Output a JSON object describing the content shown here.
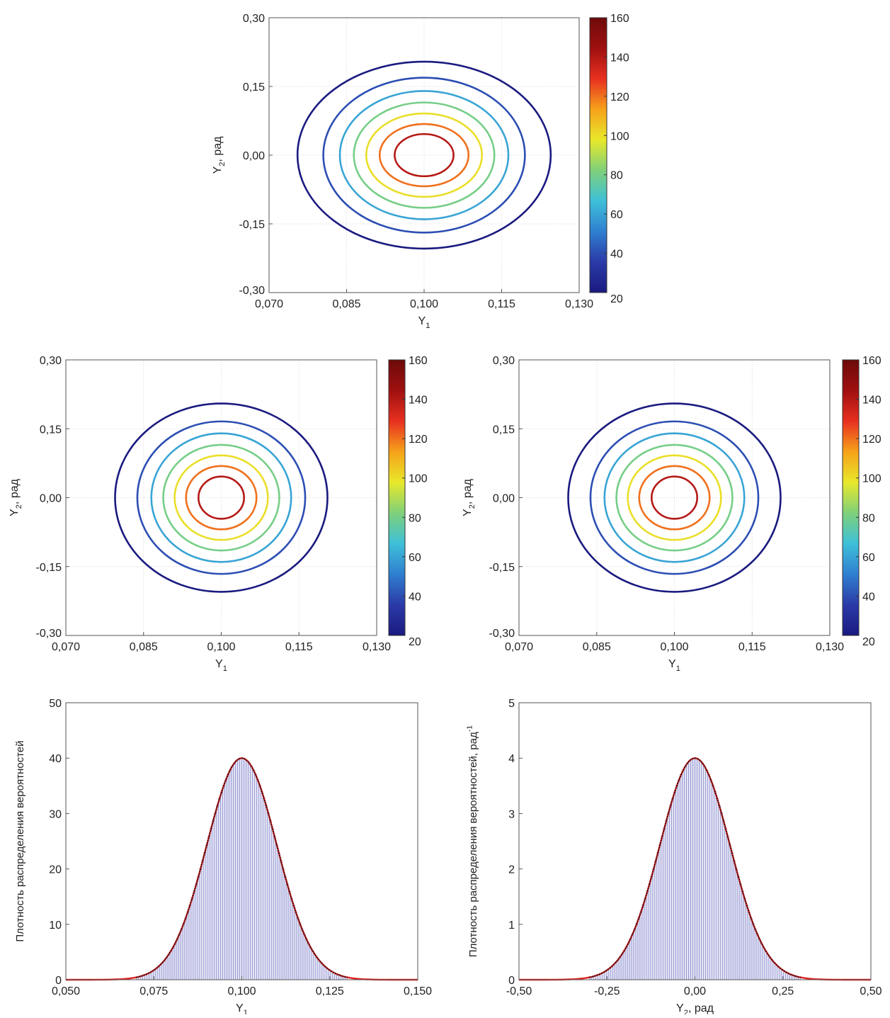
{
  "chart_data": [
    {
      "type": "contour",
      "xlabel": "Y1",
      "ylabel": "Y2, рад",
      "xlim": [
        0.07,
        0.13
      ],
      "ylim": [
        -0.3,
        0.3
      ],
      "xticks": [
        "0,070",
        "0,085",
        "0,100",
        "0,115",
        "0,130"
      ],
      "yticks": [
        "-0,30",
        "-0,15",
        "0,00",
        "0,15",
        "0,30"
      ],
      "grid": true,
      "center": [
        0.1,
        0.0
      ],
      "levels": [
        20,
        40,
        60,
        80,
        100,
        120,
        140
      ],
      "level_radii": [
        {
          "level": 20,
          "rx": 0.0245,
          "ry": 0.204
        },
        {
          "level": 40,
          "rx": 0.0195,
          "ry": 0.169
        },
        {
          "level": 60,
          "rx": 0.0163,
          "ry": 0.14
        },
        {
          "level": 80,
          "rx": 0.0136,
          "ry": 0.115
        },
        {
          "level": 100,
          "rx": 0.0112,
          "ry": 0.091
        },
        {
          "level": 120,
          "rx": 0.0086,
          "ry": 0.068
        },
        {
          "level": 140,
          "rx": 0.0057,
          "ry": 0.046
        }
      ],
      "colorbar": {
        "min": 20,
        "max": 160,
        "ticks": [
          "20",
          "40",
          "60",
          "80",
          "100",
          "120",
          "140",
          "160"
        ]
      }
    },
    {
      "type": "contour",
      "xlabel": "Y1",
      "ylabel": "Y2, рад",
      "xlim": [
        0.07,
        0.13
      ],
      "ylim": [
        -0.3,
        0.3
      ],
      "xticks": [
        "0,070",
        "0,085",
        "0,100",
        "0,115",
        "0,130"
      ],
      "yticks": [
        "-0,30",
        "-0,15",
        "0,00",
        "0,15",
        "0,30"
      ],
      "grid": true,
      "center": [
        0.1,
        0.0
      ],
      "levels": [
        20,
        40,
        60,
        80,
        100,
        120,
        140
      ],
      "level_radii": [
        {
          "level": 20,
          "rx": 0.0205,
          "ry": 0.205
        },
        {
          "level": 40,
          "rx": 0.0162,
          "ry": 0.166
        },
        {
          "level": 60,
          "rx": 0.0135,
          "ry": 0.14
        },
        {
          "level": 80,
          "rx": 0.0112,
          "ry": 0.115
        },
        {
          "level": 100,
          "rx": 0.009,
          "ry": 0.092
        },
        {
          "level": 120,
          "rx": 0.0068,
          "ry": 0.069
        },
        {
          "level": 140,
          "rx": 0.0044,
          "ry": 0.046
        }
      ],
      "colorbar": {
        "min": 20,
        "max": 160,
        "ticks": [
          "20",
          "40",
          "60",
          "80",
          "100",
          "120",
          "140",
          "160"
        ]
      }
    },
    {
      "type": "contour",
      "xlabel": "Y1",
      "ylabel": "Y2, рад",
      "xlim": [
        0.07,
        0.13
      ],
      "ylim": [
        -0.3,
        0.3
      ],
      "xticks": [
        "0,070",
        "0,085",
        "0,100",
        "0,115",
        "0,130"
      ],
      "yticks": [
        "-0,30",
        "-0,15",
        "0,00",
        "0,15",
        "0,30"
      ],
      "grid": true,
      "center": [
        0.1,
        0.0
      ],
      "levels": [
        20,
        40,
        60,
        80,
        100,
        120,
        140
      ],
      "level_radii": [
        {
          "level": 20,
          "rx": 0.0205,
          "ry": 0.205
        },
        {
          "level": 40,
          "rx": 0.0162,
          "ry": 0.166
        },
        {
          "level": 60,
          "rx": 0.0135,
          "ry": 0.14
        },
        {
          "level": 80,
          "rx": 0.0112,
          "ry": 0.115
        },
        {
          "level": 100,
          "rx": 0.009,
          "ry": 0.092
        },
        {
          "level": 120,
          "rx": 0.0068,
          "ry": 0.069
        },
        {
          "level": 140,
          "rx": 0.0044,
          "ry": 0.046
        }
      ],
      "colorbar": {
        "min": 20,
        "max": 160,
        "ticks": [
          "20",
          "40",
          "60",
          "80",
          "100",
          "120",
          "140",
          "160"
        ]
      }
    },
    {
      "type": "bar",
      "subtype": "histogram_with_density_curve",
      "xlabel": "Y1",
      "ylabel": "Плотность распределения вероятностей",
      "xlim": [
        0.05,
        0.15
      ],
      "ylim": [
        0,
        50
      ],
      "xticks": [
        "0,050",
        "0,075",
        "0,100",
        "0,125",
        "0,150"
      ],
      "yticks": [
        "0",
        "10",
        "20",
        "30",
        "40",
        "50"
      ],
      "grid": false,
      "curve": {
        "distribution": "normal",
        "mean": 0.1,
        "sd": 0.00997,
        "peak": 40
      },
      "bins": {
        "start": 0.07,
        "end": 0.13,
        "count": 100
      },
      "colors": {
        "bars": "#7b7fc8",
        "curve": "#e0201f",
        "points": "#111111"
      }
    },
    {
      "type": "bar",
      "subtype": "histogram_with_density_curve",
      "xlabel": "Y2, рад",
      "ylabel": "Плотность распределения вероятностей, рад-1",
      "xlim": [
        -0.5,
        0.5
      ],
      "ylim": [
        0,
        5
      ],
      "xticks": [
        "-0,50",
        "-0,25",
        "0,00",
        "0,25",
        "0,50"
      ],
      "yticks": [
        "0",
        "1",
        "2",
        "3",
        "4",
        "5"
      ],
      "grid": false,
      "curve": {
        "distribution": "normal",
        "mean": 0.0,
        "sd": 0.0997,
        "peak": 4
      },
      "bins": {
        "start": -0.3,
        "end": 0.3,
        "count": 100
      },
      "colors": {
        "bars": "#7b7fc8",
        "curve": "#e0201f",
        "points": "#111111"
      }
    }
  ],
  "colormap": [
    "#1a1a80",
    "#2b3aa8",
    "#2f7fd0",
    "#3ec0d8",
    "#7fd07a",
    "#e8e82a",
    "#f6a21a",
    "#e83020",
    "#a01010",
    "#6e0a0a"
  ]
}
